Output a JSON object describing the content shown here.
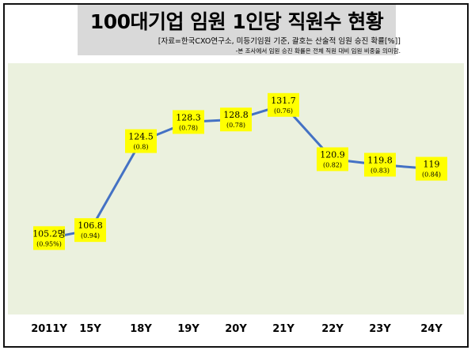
{
  "header": {
    "title": "100대기업 임원 1인당 직원수 현황",
    "source": "[자료=한국CXO연구소, 미등기임원 기준, 괄호는 산술적 임원 승진 확률[%]]",
    "note": "-본 조사에서 임원 승진 확률은 전체 직원 대비 임원 비중을 의미함."
  },
  "colors": {
    "plot_bg": "#ebf1de",
    "line": "#4472c4",
    "label_bg": "#ffff00",
    "title_band": "#d9d9d9"
  },
  "chart_data": {
    "type": "line",
    "categories": [
      "2011Y",
      "15Y",
      "18Y",
      "19Y",
      "20Y",
      "21Y",
      "22Y",
      "23Y",
      "24Y"
    ],
    "values": [
      105.2,
      106.8,
      124.5,
      128.3,
      128.8,
      131.7,
      120.9,
      119.8,
      119
    ],
    "value_labels": [
      "105.2명",
      "106.8",
      "124.5",
      "128.3",
      "128.8",
      "131.7",
      "120.9",
      "119.8",
      "119"
    ],
    "rate_labels": [
      "(0.95%)",
      "(0.94)",
      "(0.8)",
      "(0.78)",
      "(0.78)",
      "(0.76)",
      "(0.82)",
      "(0.83)",
      "(0.84)"
    ],
    "ylim": [
      90,
      140
    ],
    "grid": false,
    "title": "",
    "xlabel": "",
    "ylabel": ""
  }
}
